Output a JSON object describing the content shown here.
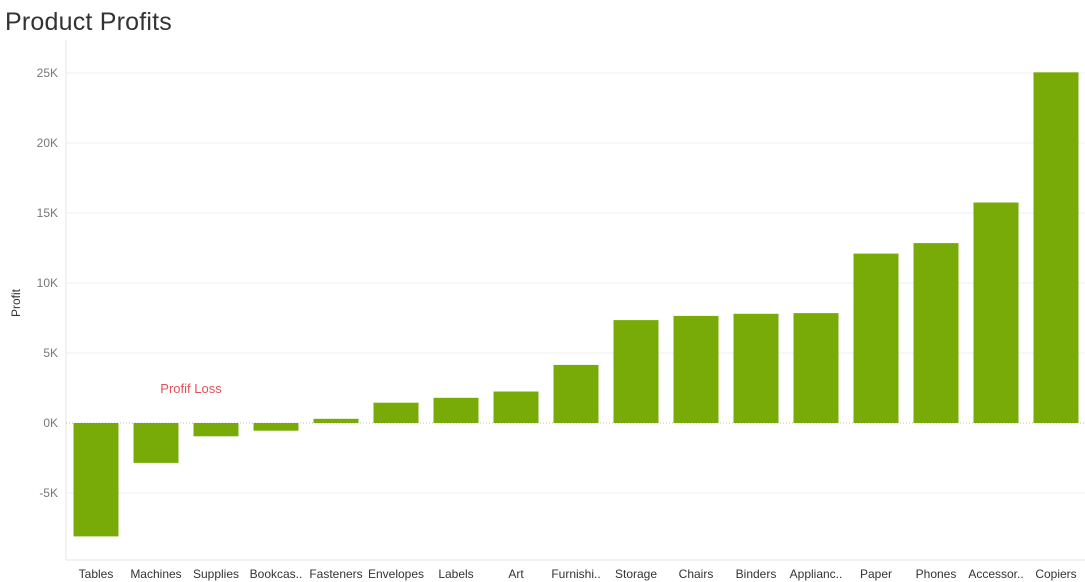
{
  "title": "Product Profits",
  "chart_data": {
    "type": "bar",
    "ylabel": "Profit",
    "xlabel": "",
    "ylim": [
      -9000,
      25700
    ],
    "yticks": [
      {
        "value": 25000,
        "label": "25K"
      },
      {
        "value": 20000,
        "label": "20K"
      },
      {
        "value": 15000,
        "label": "15K"
      },
      {
        "value": 10000,
        "label": "10K"
      },
      {
        "value": 5000,
        "label": "5K"
      },
      {
        "value": 0,
        "label": "0K"
      },
      {
        "value": -5000,
        "label": "-5K"
      }
    ],
    "categories": [
      "Tables",
      "Machines",
      "Supplies",
      "Bookcas..",
      "Fasteners",
      "Envelopes",
      "Labels",
      "Art",
      "Furnishi..",
      "Storage",
      "Chairs",
      "Binders",
      "Applianc..",
      "Paper",
      "Phones",
      "Accessor..",
      "Copiers"
    ],
    "values": [
      -8100,
      -2850,
      -950,
      -550,
      300,
      1450,
      1800,
      2250,
      4150,
      7350,
      7650,
      7800,
      7850,
      12100,
      12850,
      15750,
      25050
    ],
    "bar_color": "#79ab08",
    "annotation": {
      "text": "Profif Loss",
      "color": "#e0525a"
    },
    "grid": true
  }
}
